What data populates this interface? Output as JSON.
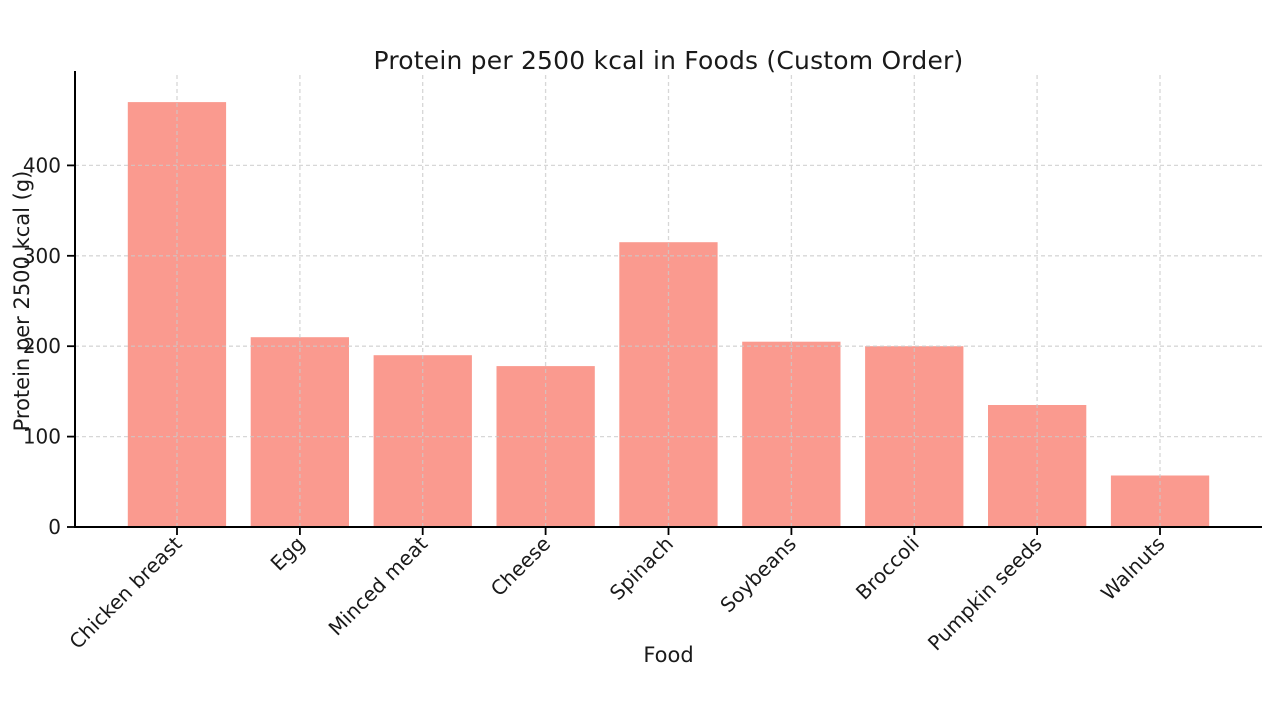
{
  "figure": {
    "background": "#ffffff",
    "text_color": "#1a1a1a",
    "spine_color": "#000000",
    "grid_color": "#c9c9c9"
  },
  "chart_data": {
    "type": "bar",
    "title": "Protein per 2500 kcal in Foods (Custom Order)",
    "xlabel": "Food",
    "ylabel": "Protein per 2500 kcal (g)",
    "categories": [
      "Chicken breast",
      "Egg",
      "Minced meat",
      "Cheese",
      "Spinach",
      "Soybeans",
      "Broccoli",
      "Pumpkin seeds",
      "Walnuts"
    ],
    "values": [
      470,
      210,
      190,
      178,
      315,
      205,
      200,
      135,
      57
    ],
    "yticks": [
      0,
      100,
      200,
      300,
      400
    ],
    "ylim": [
      0,
      500
    ],
    "bar_color": "#fa9a8f",
    "bar_width_fraction": 0.8,
    "grid": true,
    "grid_style": "dashed",
    "legend": "none",
    "x_tick_rotation_deg": 45
  }
}
